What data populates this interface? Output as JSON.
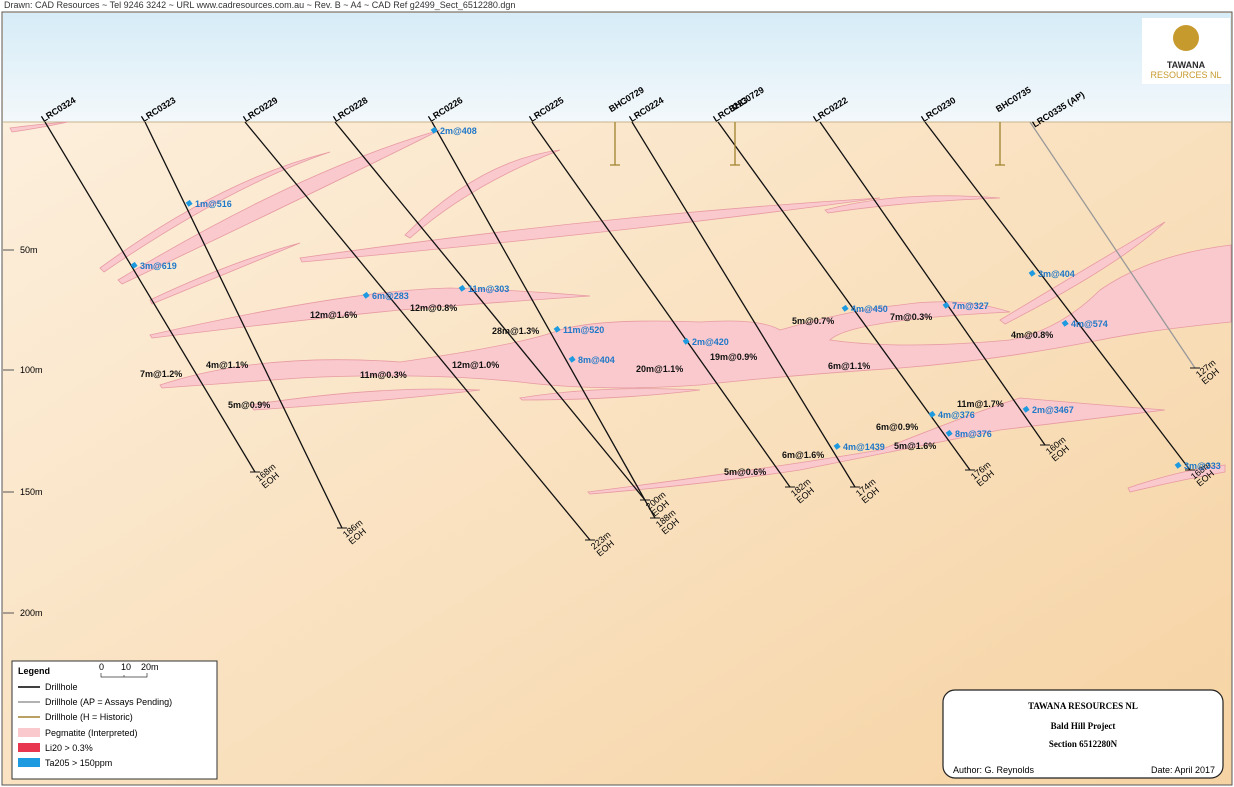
{
  "header": "Drawn: CAD Resources ~ Tel 9246 3242 ~ URL www.cadresources.com.au ~ Rev. B ~ A4 ~ CAD Ref g2499_Sect_6512280.dgn",
  "logo": {
    "name": "TAWANA",
    "sub": "RESOURCES NL"
  },
  "depth_labels": [
    "50m",
    "100m",
    "150m",
    "200m"
  ],
  "drillholes": [
    {
      "name": "LRC0324",
      "depth": "168m",
      "eoh": "EOH"
    },
    {
      "name": "LRC0323",
      "depth": "186m",
      "eoh": "EOH"
    },
    {
      "name": "LRC0229",
      "depth": "223m",
      "eoh": "EOH"
    },
    {
      "name": "LRC0228",
      "depth": "200m",
      "eoh": "EOH"
    },
    {
      "name": "LRC0226",
      "depth": "188m",
      "eoh": "EOH"
    },
    {
      "name": "LRC0225",
      "depth": "182m",
      "eoh": "EOH"
    },
    {
      "name": "LRC0224",
      "depth": "174m",
      "eoh": "EOH"
    },
    {
      "name": "LRC0223",
      "depth": "176m",
      "eoh": "EOH"
    },
    {
      "name": "LRC0222",
      "depth": "160m",
      "eoh": "EOH"
    },
    {
      "name": "LRC0230",
      "depth": "168m",
      "eoh": "EOH"
    },
    {
      "name": "LRC0335 (AP)",
      "depth": "127m",
      "eoh": "EOH"
    }
  ],
  "historic_holes": [
    "BHC0729",
    "BHC0729",
    "BHC0735"
  ],
  "ta2o5_intercepts": [
    "2m@408",
    "1m@516",
    "3m@619",
    "6m@283",
    "11m@303",
    "11m@520",
    "8m@404",
    "2m@420",
    "4m@450",
    "7m@327",
    "3m@404",
    "4m@574",
    "2m@3467",
    "4m@376",
    "8m@376",
    "4m@1439",
    "3m@333"
  ],
  "li2o_intercepts": [
    "12m@1.6%",
    "12m@0.8%",
    "28m@1.3%",
    "7m@1.2%",
    "4m@1.1%",
    "11m@0.3%",
    "12m@1.0%",
    "20m@1.1%",
    "19m@0.9%",
    "5m@0.7%",
    "7m@0.3%",
    "4m@0.8%",
    "6m@1.1%",
    "5m@0.9%",
    "11m@1.7%",
    "6m@0.9%",
    "5m@1.6%",
    "6m@1.6%",
    "5m@0.6%"
  ],
  "legend": {
    "title": "Legend",
    "scale": [
      "0",
      "10",
      "20m"
    ],
    "items": [
      "Drillhole",
      "Drillhole (AP = Assays Pending)",
      "Drillhole (H = Historic)",
      "Pegmatite (Interpreted)",
      "Li20 > 0.3%",
      "Ta205 > 150ppm"
    ]
  },
  "title_block": {
    "company": "TAWANA RESOURCES NL",
    "project": "Bald Hill Project",
    "section": "Section 6512280N",
    "author": "Author: G. Reynolds",
    "date": "Date: April 2017"
  }
}
